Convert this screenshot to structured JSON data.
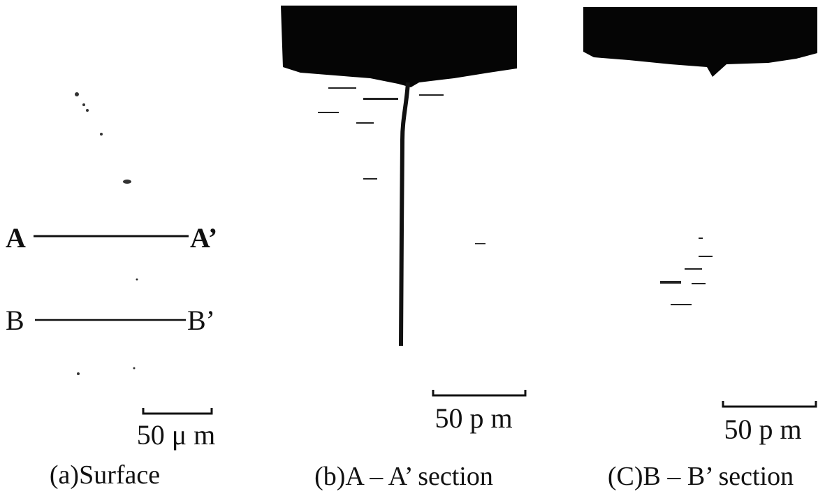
{
  "panels": [
    {
      "caption": "(a)Surface",
      "scale_bar": "50 μ m",
      "lines": [
        {
          "start": "A",
          "end": "A’"
        },
        {
          "start": "B",
          "end": "B’"
        }
      ]
    },
    {
      "caption": "(b)A – A’ section",
      "scale_bar": "50 p m"
    },
    {
      "caption": "(C)B – B’ section",
      "scale_bar": "50 p m"
    }
  ]
}
